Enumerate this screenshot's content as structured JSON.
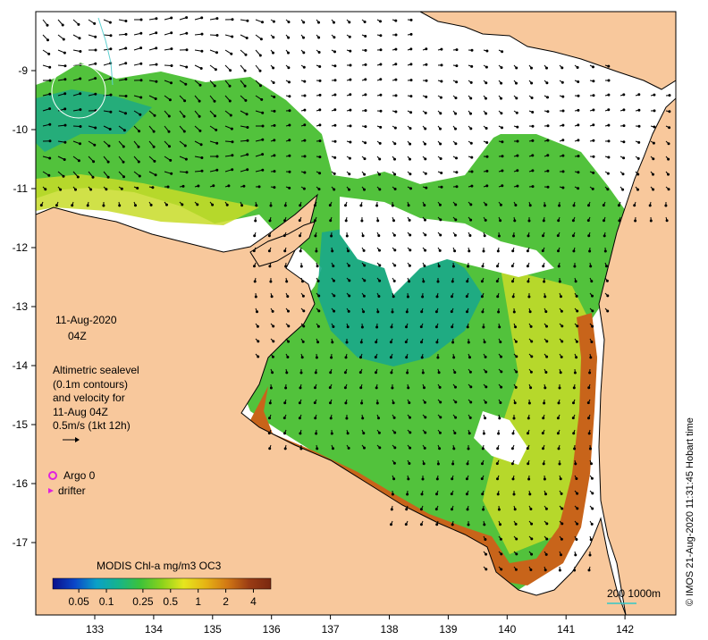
{
  "map": {
    "date": "11-Aug-2020",
    "time": "04Z",
    "legend_lines": [
      "Altimetric sealevel",
      "(0.1m contours)",
      "and velocity for",
      "11-Aug 04Z",
      "0.5m/s (1kt 12h)"
    ],
    "argo_label": "Argo 0",
    "drifter_label": "drifter",
    "colorbar_title": "MODIS Chl-a mg/m3 OC3",
    "colorbar_ticks": [
      "0.05",
      "0.1",
      "0.25",
      "0.5",
      "1",
      "2",
      "4"
    ],
    "colorbar_tick_values": [
      0.05,
      0.1,
      0.25,
      0.5,
      1,
      2,
      4
    ],
    "colorbar_colors": [
      "#0a0f8a",
      "#0a46c8",
      "#0aa0c8",
      "#16b48c",
      "#3cc23a",
      "#8ad21c",
      "#e6e61e",
      "#e6b414",
      "#d27814",
      "#9a3c14",
      "#7a2810"
    ],
    "scale_label": "200  1000m",
    "credit": "© IMOS 21-Aug-2020 11:31:45 Hobart time",
    "lon_ticks": [
      "133",
      "134",
      "135",
      "136",
      "137",
      "138",
      "139",
      "140",
      "141",
      "142"
    ],
    "lat_ticks": [
      "-9",
      "-10",
      "-11",
      "-12",
      "-13",
      "-14",
      "-15",
      "-16",
      "-17"
    ],
    "colors": {
      "land": "#f8c89c",
      "coastline": "#000000",
      "nodata": "#ffffff",
      "shelf_green": "#52c23c",
      "deep_teal": "#1aa889",
      "coastal_brown": "#c8641a",
      "argo": "#e020e0",
      "drifter": "#e020e0",
      "scale_bar": "#33c7c7"
    }
  }
}
